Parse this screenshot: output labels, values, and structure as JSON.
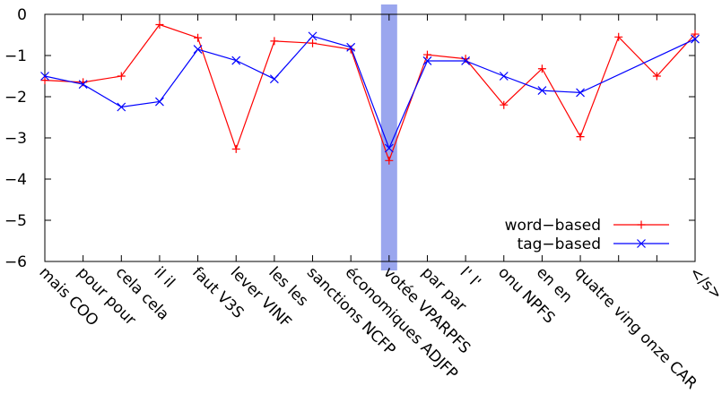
{
  "chart_data": {
    "type": "line",
    "categories": [
      "mais COO",
      "pour pour",
      "cela cela",
      "il il",
      "faut V3S",
      "lever VINF",
      "les les",
      "sanctions NCFP",
      "économiques ADJFP",
      "votée VPARPFS",
      "par par",
      "l' l'",
      "onu NPFS",
      "en en",
      "quatre ving onze CAR",
      "",
      "",
      "</s>"
    ],
    "y_ticks": [
      "0",
      "−1",
      "−2",
      "−3",
      "−4",
      "−5",
      "−6"
    ],
    "ylim": [
      -6,
      0
    ],
    "highlight_category_index": 9,
    "highlight_color": "#9aa6ee",
    "grid": false,
    "legend_position": "bottom-right",
    "series": [
      {
        "name": "word−based",
        "color": "#ff0000",
        "marker": "plus",
        "values": [
          -1.6,
          -1.65,
          -1.5,
          -0.25,
          -0.57,
          -3.27,
          -0.65,
          -0.7,
          -0.85,
          -3.55,
          -0.98,
          -1.08,
          -2.2,
          -1.32,
          -2.97,
          -0.55,
          -1.5,
          -0.48
        ]
      },
      {
        "name": "tag−based",
        "color": "#0000ff",
        "marker": "x",
        "values": [
          -1.5,
          -1.7,
          -2.25,
          -2.12,
          -0.85,
          -1.12,
          -1.57,
          -0.53,
          -0.8,
          -3.25,
          -1.13,
          -1.13,
          -1.5,
          -1.85,
          -1.9,
          null,
          null,
          -0.6
        ]
      }
    ]
  }
}
